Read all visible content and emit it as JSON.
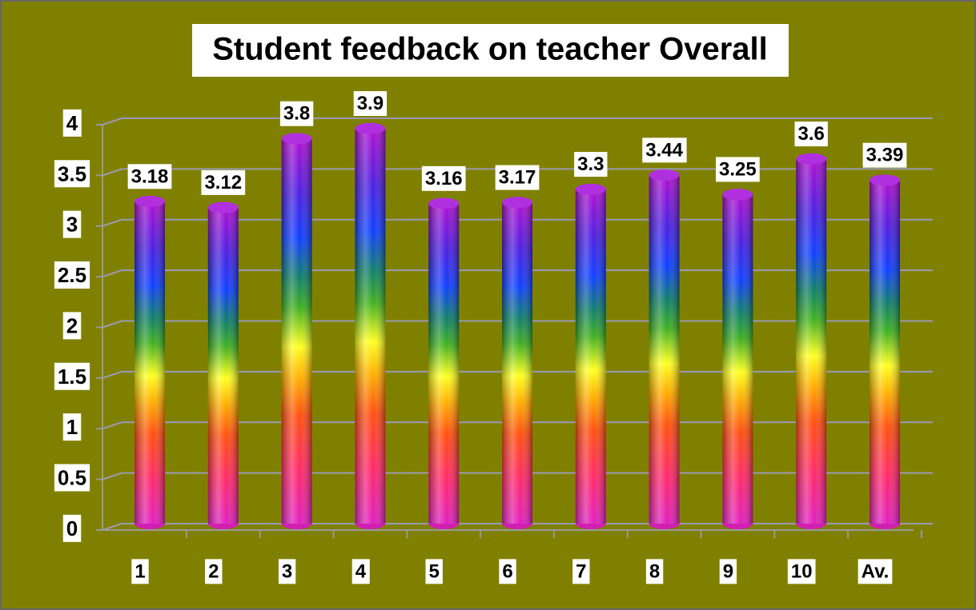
{
  "chart_data": {
    "type": "bar",
    "title": "Student feedback on teacher Overall",
    "categories": [
      "1",
      "2",
      "3",
      "4",
      "5",
      "6",
      "7",
      "8",
      "9",
      "10",
      "Av."
    ],
    "values": [
      3.18,
      3.12,
      3.8,
      3.9,
      3.16,
      3.17,
      3.3,
      3.44,
      3.25,
      3.6,
      3.39
    ],
    "ylim": [
      0,
      4
    ],
    "yticks": [
      0,
      0.5,
      1,
      1.5,
      2,
      2.5,
      3,
      3.5,
      4
    ],
    "grid": true,
    "background": "#808000"
  }
}
